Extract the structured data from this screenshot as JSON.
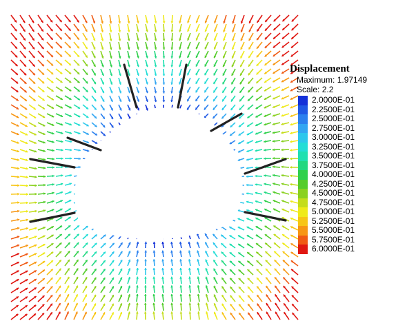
{
  "legend": {
    "title": "Displacement",
    "maximum_label": "Maximum:",
    "maximum_value": "1.97149",
    "scale_label": "Scale:",
    "scale_value": "2.2",
    "levels": [
      {
        "label": "2.0000E-01",
        "color": "#1430d8"
      },
      {
        "label": "2.2500E-01",
        "color": "#1f58e4"
      },
      {
        "label": "2.5000E-01",
        "color": "#2b80ee"
      },
      {
        "label": "2.7500E-01",
        "color": "#32a6f2"
      },
      {
        "label": "3.0000E-01",
        "color": "#2cc7ec"
      },
      {
        "label": "3.2500E-01",
        "color": "#22ddd6"
      },
      {
        "label": "3.5000E-01",
        "color": "#1fe0b0"
      },
      {
        "label": "3.7500E-01",
        "color": "#22d880"
      },
      {
        "label": "4.0000E-01",
        "color": "#2fd04c"
      },
      {
        "label": "4.2500E-01",
        "color": "#55cc2a"
      },
      {
        "label": "4.5000E-01",
        "color": "#8ad11f"
      },
      {
        "label": "4.7500E-01",
        "color": "#c4dd1c"
      },
      {
        "label": "5.0000E-01",
        "color": "#efea1a"
      },
      {
        "label": "5.2500E-01",
        "color": "#f7c516"
      },
      {
        "label": "5.5000E-01",
        "color": "#f79614"
      },
      {
        "label": "5.7500E-01",
        "color": "#f05a14"
      },
      {
        "label": "6.0000E-01",
        "color": "#e01812"
      }
    ]
  },
  "field": {
    "min_value": 0.2,
    "max_value": 0.6,
    "bolt_color": "#222222",
    "opening_color": "#ffffff"
  }
}
